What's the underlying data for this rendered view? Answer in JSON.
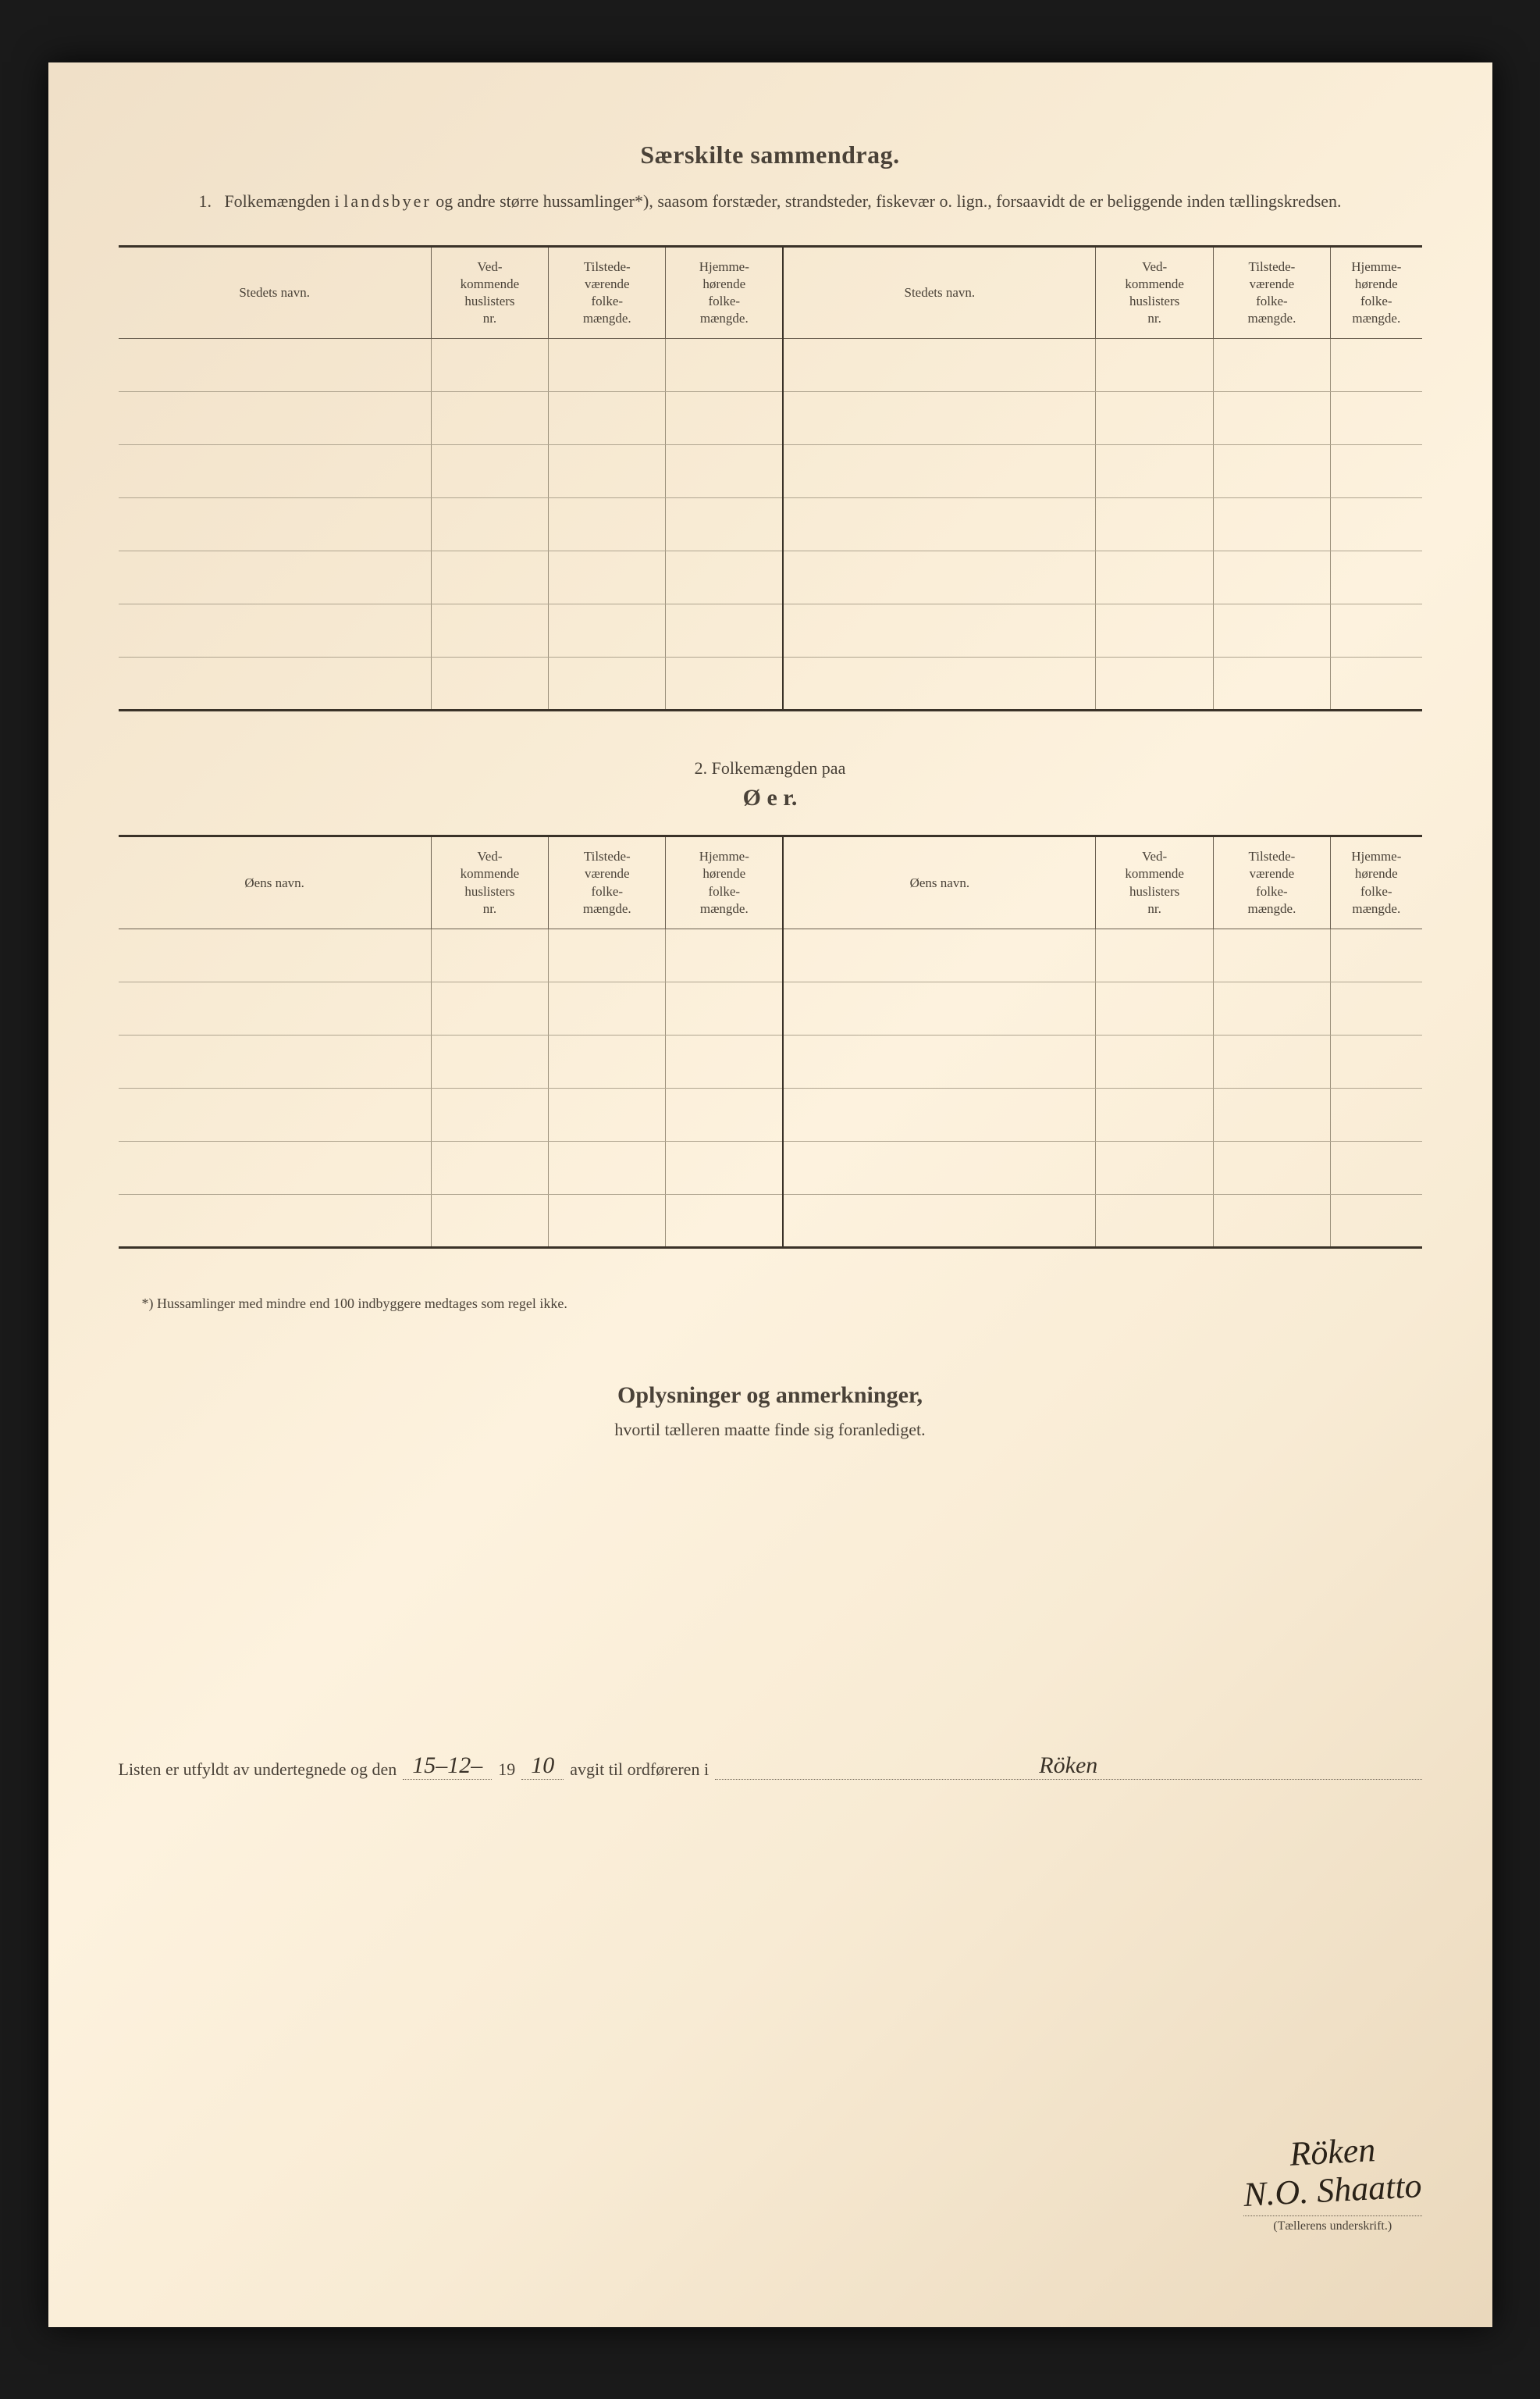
{
  "page": {
    "background_color": "#f5e8d0",
    "text_color": "#4a4238",
    "border_color_heavy": "#3a3228",
    "border_color_light": "#9a8f7a"
  },
  "section1": {
    "title": "Særskilte sammendrag.",
    "intro_num": "1.",
    "intro_text_a": "Folkemængden i ",
    "intro_text_spaced": "landsbyer",
    "intro_text_b": " og andre større hussamlinger*), saasom forstæder, strandsteder, fiskevær o. lign., forsaavidt de er beliggende inden tællingskredsen.",
    "table": {
      "headers": {
        "c1": "Stedets navn.",
        "c2": "Ved-\nkommende\nhuslisters\nnr.",
        "c3": "Tilstede-\nværende\nfolke-\nmængde.",
        "c4": "Hjemme-\nhørende\nfolke-\nmængde.",
        "c5": "Stedets navn.",
        "c6": "Ved-\nkommende\nhuslisters\nnr.",
        "c7": "Tilstede-\nværende\nfolke-\nmængde.",
        "c8": "Hjemme-\nhørende\nfolke-\nmængde."
      },
      "row_count": 7,
      "column_widths_pct": [
        24,
        9,
        9,
        9,
        24,
        9,
        9,
        9
      ]
    }
  },
  "section2": {
    "label": "2.   Folkemængden paa",
    "title": "Ø e r.",
    "table": {
      "headers": {
        "c1": "Øens navn.",
        "c2": "Ved-\nkommende\nhuslisters\nnr.",
        "c3": "Tilstede-\nværende\nfolke-\nmængde.",
        "c4": "Hjemme-\nhørende\nfolke-\nmængde.",
        "c5": "Øens navn.",
        "c6": "Ved-\nkommende\nhuslisters\nnr.",
        "c7": "Tilstede-\nværende\nfolke-\nmængde.",
        "c8": "Hjemme-\nhørende\nfolke-\nmængde."
      },
      "row_count": 6
    }
  },
  "footnote": "*)  Hussamlinger med mindre end 100 indbyggere medtages som regel ikke.",
  "section3": {
    "title": "Oplysninger og anmerkninger,",
    "subtitle": "hvortil tælleren maatte finde sig foranlediget."
  },
  "signature": {
    "line_a": "Listen er utfyldt av undertegnede og den",
    "date_value": "15–12–",
    "line_b": "19",
    "year_value": "10",
    "line_c": "avgit til ordføreren i",
    "place_value": "Röken",
    "signature_name_1": "Röken",
    "signature_name_2": "N.O. Shaatto",
    "caption": "(Tællerens underskrift.)"
  }
}
